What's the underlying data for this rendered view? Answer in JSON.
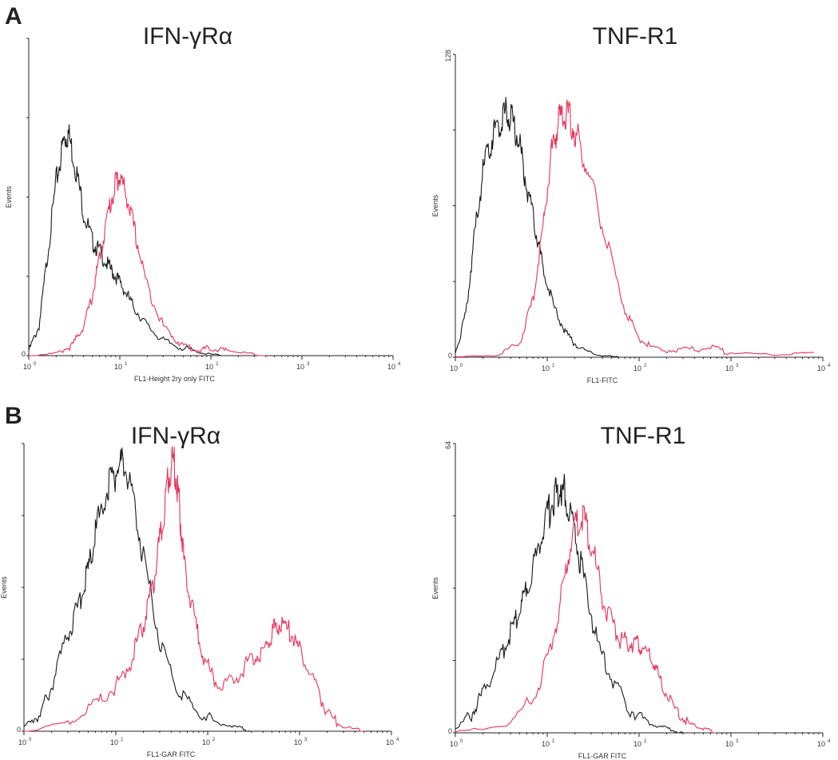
{
  "panels": [
    {
      "letter": "A"
    },
    {
      "letter": "B"
    }
  ],
  "chart_data": [
    {
      "type": "line",
      "panel": "A",
      "title": "IFN-γRα",
      "xlabel": "FL1-Height 2ry only FITC",
      "ylabel": "Events",
      "xscale": "log",
      "xlim": [
        1,
        10000
      ],
      "x_ticks": [
        "10^0",
        "10^1",
        "10^2",
        "10^3",
        "10^4"
      ],
      "y_max_label": "",
      "ylim": [
        0,
        128
      ],
      "series": [
        {
          "color": "#1a1a1a",
          "x": [
            1,
            1.3,
            1.6,
            2,
            2.4,
            2.7,
            3.2,
            4,
            5,
            6,
            7.5,
            9,
            11,
            14,
            20,
            30,
            50,
            80,
            130
          ],
          "y": [
            2,
            12,
            40,
            70,
            86,
            90,
            78,
            58,
            46,
            42,
            36,
            32,
            27,
            20,
            12,
            6,
            3,
            1,
            0
          ]
        },
        {
          "color": "#e8325a",
          "x": [
            1,
            2,
            3,
            4,
            5,
            6,
            7.5,
            9,
            10,
            12,
            15,
            20,
            30,
            45,
            70,
            100,
            150,
            250,
            400
          ],
          "y": [
            0,
            1,
            4,
            12,
            24,
            40,
            58,
            70,
            72,
            64,
            48,
            28,
            12,
            5,
            2,
            3,
            2,
            1,
            0
          ]
        }
      ]
    },
    {
      "type": "line",
      "panel": "A",
      "title": "TNF-R1",
      "xlabel": "FL1-FITC",
      "ylabel": "Events",
      "xscale": "log",
      "xlim": [
        1,
        10000
      ],
      "x_ticks": [
        "10^0",
        "10^1",
        "10^2",
        "10^3",
        "10^4"
      ],
      "y_max_label": "128",
      "ylim": [
        0,
        128
      ],
      "series": [
        {
          "color": "#1a1a1a",
          "x": [
            1,
            1.3,
            1.6,
            2,
            2.5,
            3,
            3.6,
            4.2,
            5,
            6,
            7.5,
            9,
            12,
            16,
            22,
            35,
            60
          ],
          "y": [
            2,
            18,
            50,
            78,
            92,
            100,
            103,
            100,
            90,
            72,
            54,
            38,
            20,
            10,
            4,
            1,
            0
          ]
        },
        {
          "color": "#e8325a",
          "x": [
            1,
            3,
            5,
            7,
            9,
            11,
            13,
            15,
            18,
            22,
            30,
            45,
            70,
            100,
            150,
            300,
            600,
            1000,
            3000,
            8000
          ],
          "y": [
            0,
            1,
            6,
            24,
            55,
            85,
            98,
            104,
            100,
            92,
            74,
            48,
            20,
            8,
            3,
            3,
            4,
            2,
            1,
            2
          ]
        }
      ]
    },
    {
      "type": "line",
      "panel": "B",
      "title": "IFN-γRα",
      "xlabel": "FL1-GAR FITC",
      "ylabel": "Events",
      "xscale": "log",
      "xlim": [
        1,
        10000
      ],
      "x_ticks": [
        "10^0",
        "10^1",
        "10^2",
        "10^3",
        "10^4"
      ],
      "y_max_label": "",
      "ylim": [
        0,
        64
      ],
      "series": [
        {
          "color": "#1a1a1a",
          "x": [
            1,
            1.5,
            2,
            3,
            4,
            5,
            6,
            8,
            10,
            12,
            15,
            20,
            30,
            45,
            70,
            120,
            200,
            300
          ],
          "y": [
            1,
            4,
            10,
            22,
            28,
            36,
            44,
            54,
            58,
            60,
            54,
            38,
            20,
            10,
            5,
            2,
            1,
            0
          ]
        },
        {
          "color": "#e8325a",
          "x": [
            1,
            3,
            6,
            10,
            15,
            20,
            25,
            30,
            35,
            40,
            45,
            50,
            55,
            70,
            90,
            130,
            200,
            300,
            400,
            500,
            600,
            800,
            1000,
            1500,
            2000,
            3000,
            5000
          ],
          "y": [
            0,
            2,
            6,
            10,
            16,
            24,
            32,
            42,
            52,
            60,
            58,
            48,
            38,
            26,
            16,
            10,
            12,
            16,
            18,
            22,
            24,
            22,
            18,
            10,
            4,
            1,
            0
          ]
        }
      ]
    },
    {
      "type": "line",
      "panel": "B",
      "title": "TNF-R1",
      "xlabel": "FL1-GAR FITC",
      "ylabel": "Events",
      "xscale": "log",
      "xlim": [
        1,
        10000
      ],
      "x_ticks": [
        "10^0",
        "10^1",
        "10^2",
        "10^3",
        "10^4"
      ],
      "y_max_label": "64",
      "ylim": [
        0,
        64
      ],
      "series": [
        {
          "color": "#1a1a1a",
          "x": [
            1,
            1.5,
            2,
            3,
            4,
            5,
            6,
            8,
            10,
            12,
            14,
            16,
            20,
            25,
            35,
            50,
            80,
            130,
            200,
            300
          ],
          "y": [
            1,
            4,
            9,
            16,
            22,
            27,
            32,
            40,
            48,
            52,
            55,
            52,
            44,
            34,
            20,
            12,
            5,
            2,
            1,
            0
          ]
        },
        {
          "color": "#e8325a",
          "x": [
            1,
            4,
            8,
            12,
            16,
            20,
            25,
            30,
            40,
            55,
            70,
            90,
            110,
            140,
            180,
            250,
            350,
            500,
            700
          ],
          "y": [
            0,
            2,
            10,
            22,
            36,
            46,
            48,
            42,
            30,
            22,
            20,
            20,
            19,
            16,
            10,
            5,
            2,
            1,
            0
          ]
        }
      ]
    }
  ]
}
